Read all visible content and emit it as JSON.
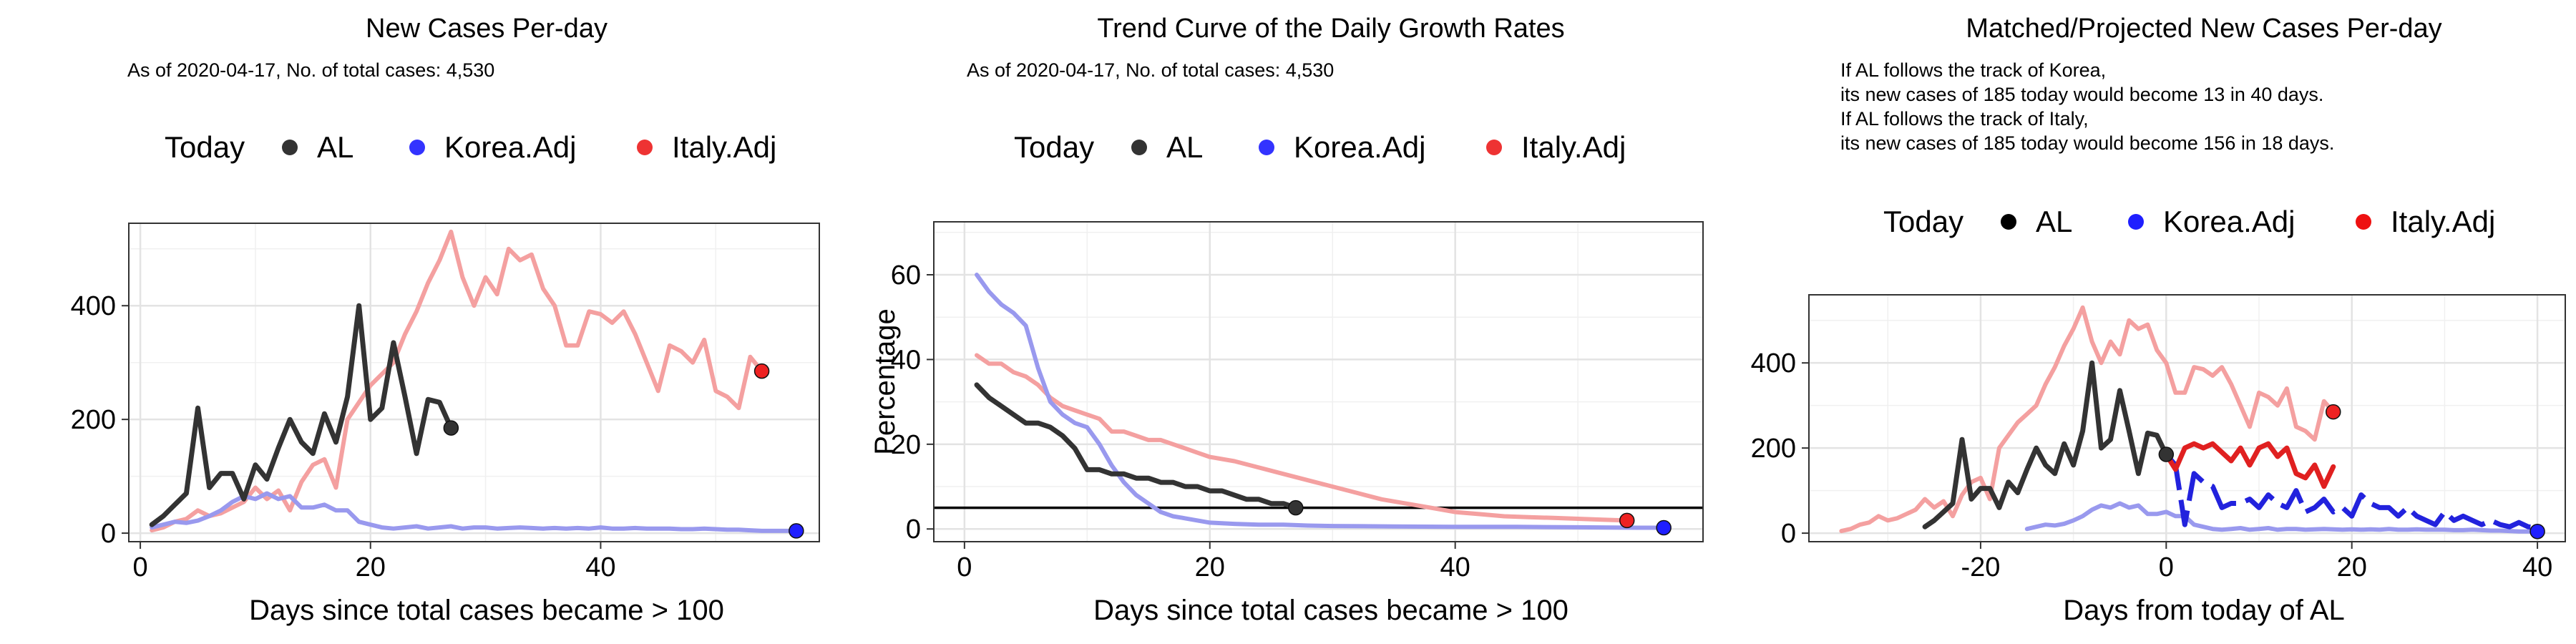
{
  "legend": {
    "title": "Today",
    "items": [
      "AL",
      "Korea.Adj",
      "Italy.Adj"
    ]
  },
  "colors": {
    "AL": "#333333",
    "Korea": "#9999ee",
    "Italy": "#f4a0a0",
    "KoreaProj": "#2222dd",
    "ItalyProj": "#e02020",
    "ALdot": "#333333",
    "KoreaDot": "#1f1fff",
    "ItalyDot": "#ee2222"
  },
  "panels": [
    {
      "title": "New Cases Per-day",
      "subtitle": "As of 2020-04-17, No. of total cases: 4,530"
    },
    {
      "title": "Trend Curve of the Daily Growth Rates",
      "subtitle": "As of 2020-04-17, No. of total cases: 4,530"
    },
    {
      "title": "Matched/Projected New Cases Per-day",
      "notes": [
        "If AL follows the track of Korea,",
        "its new cases of 185 today would become 13 in 40 days.",
        "If AL follows the track of Italy,",
        "its new cases of 185 today would become 156 in 18 days."
      ]
    }
  ],
  "chart_data": [
    {
      "type": "line",
      "title": "New Cases Per-day",
      "xlabel": "Days since total cases became > 100",
      "ylabel": "",
      "xlim": [
        -1,
        59
      ],
      "ylim": [
        -15,
        545
      ],
      "xticks": [
        0,
        20,
        40
      ],
      "yticks": [
        0,
        200,
        400
      ],
      "grid": true,
      "legend_position": "top",
      "series": [
        {
          "name": "AL",
          "x": [
            1,
            2,
            3,
            4,
            5,
            6,
            7,
            8,
            9,
            10,
            11,
            12,
            13,
            14,
            15,
            16,
            17,
            18,
            19,
            20,
            21,
            22,
            23,
            24,
            25,
            26,
            27
          ],
          "values": [
            15,
            30,
            50,
            70,
            220,
            80,
            105,
            105,
            60,
            120,
            95,
            150,
            200,
            160,
            140,
            210,
            160,
            240,
            400,
            200,
            220,
            335,
            240,
            140,
            235,
            230,
            185
          ]
        },
        {
          "name": "Korea.Adj",
          "x": [
            1,
            2,
            3,
            4,
            5,
            6,
            7,
            8,
            9,
            10,
            11,
            12,
            13,
            14,
            15,
            16,
            17,
            18,
            19,
            20,
            21,
            22,
            23,
            24,
            25,
            26,
            27,
            28,
            29,
            30,
            31,
            32,
            33,
            34,
            35,
            36,
            37,
            38,
            39,
            40,
            41,
            42,
            43,
            44,
            45,
            46,
            47,
            48,
            49,
            50,
            51,
            52,
            53,
            54,
            55,
            56,
            57
          ],
          "values": [
            10,
            15,
            20,
            18,
            22,
            30,
            40,
            55,
            65,
            60,
            70,
            60,
            65,
            45,
            45,
            50,
            40,
            40,
            20,
            15,
            10,
            8,
            10,
            12,
            8,
            10,
            12,
            8,
            10,
            10,
            8,
            9,
            10,
            9,
            8,
            9,
            8,
            9,
            8,
            10,
            8,
            8,
            9,
            8,
            8,
            8,
            7,
            7,
            8,
            7,
            6,
            6,
            5,
            4,
            4,
            4,
            4
          ]
        },
        {
          "name": "Italy.Adj",
          "x": [
            1,
            2,
            3,
            4,
            5,
            6,
            7,
            8,
            9,
            10,
            11,
            12,
            13,
            14,
            15,
            16,
            17,
            18,
            19,
            20,
            21,
            22,
            23,
            24,
            25,
            26,
            27,
            28,
            29,
            30,
            31,
            32,
            33,
            34,
            35,
            36,
            37,
            38,
            39,
            40,
            41,
            42,
            43,
            44,
            45,
            46,
            47,
            48,
            49,
            50,
            51,
            52,
            53,
            54
          ],
          "values": [
            5,
            10,
            20,
            25,
            40,
            30,
            35,
            45,
            55,
            80,
            60,
            75,
            40,
            90,
            120,
            130,
            80,
            200,
            230,
            260,
            280,
            300,
            350,
            390,
            440,
            480,
            530,
            450,
            400,
            450,
            420,
            500,
            480,
            490,
            430,
            400,
            330,
            330,
            390,
            385,
            370,
            390,
            350,
            300,
            250,
            330,
            320,
            300,
            340,
            250,
            240,
            220,
            310,
            285
          ]
        }
      ],
      "today_points": [
        {
          "series": "AL",
          "x": 27,
          "y": 185
        },
        {
          "series": "Korea.Adj",
          "x": 57,
          "y": 4
        },
        {
          "series": "Italy.Adj",
          "x": 54,
          "y": 285
        }
      ]
    },
    {
      "type": "line",
      "title": "Trend Curve of the Daily Growth Rates",
      "xlabel": "Days since total cases became > 100",
      "ylabel": "Percentage",
      "xlim": [
        -2.5,
        60.2
      ],
      "ylim": [
        -3,
        72.5
      ],
      "xticks": [
        0,
        20,
        40
      ],
      "yticks": [
        0,
        20,
        40,
        60
      ],
      "hline": 5,
      "grid": true,
      "legend_position": "top",
      "series": [
        {
          "name": "AL",
          "x": [
            1,
            2,
            3,
            4,
            5,
            6,
            7,
            8,
            9,
            10,
            11,
            12,
            13,
            14,
            15,
            16,
            17,
            18,
            19,
            20,
            21,
            22,
            23,
            24,
            25,
            26,
            27
          ],
          "values": [
            34,
            31,
            29,
            27,
            25,
            25,
            24,
            22,
            19,
            14,
            14,
            13,
            13,
            12,
            12,
            11,
            11,
            10,
            10,
            9,
            9,
            8,
            7,
            7,
            6,
            6,
            5
          ]
        },
        {
          "name": "Korea.Adj",
          "x": [
            1,
            2,
            3,
            4,
            5,
            6,
            7,
            8,
            9,
            10,
            11,
            12,
            13,
            14,
            15,
            16,
            17,
            18,
            19,
            20,
            22,
            24,
            26,
            28,
            30,
            35,
            40,
            45,
            50,
            55,
            57
          ],
          "values": [
            60,
            56,
            53,
            51,
            48,
            38,
            30,
            27,
            25,
            24,
            20,
            15,
            11,
            8,
            6,
            4,
            3,
            2.5,
            2,
            1.5,
            1.2,
            1,
            1,
            0.8,
            0.7,
            0.6,
            0.5,
            0.5,
            0.4,
            0.3,
            0.3
          ]
        },
        {
          "name": "Italy.Adj",
          "x": [
            1,
            2,
            3,
            4,
            5,
            6,
            7,
            8,
            9,
            10,
            11,
            12,
            13,
            14,
            15,
            16,
            17,
            18,
            19,
            20,
            22,
            24,
            26,
            28,
            30,
            32,
            34,
            36,
            38,
            40,
            42,
            44,
            46,
            48,
            50,
            52,
            54
          ],
          "values": [
            41,
            39,
            39,
            37,
            36,
            34,
            31,
            29,
            28,
            27,
            26,
            23,
            23,
            22,
            21,
            21,
            20,
            19,
            18,
            17,
            16,
            14.5,
            13,
            11.5,
            10,
            8.5,
            7,
            6,
            5,
            4,
            3.5,
            3,
            2.8,
            2.6,
            2.4,
            2.2,
            2
          ]
        }
      ],
      "today_points": [
        {
          "series": "AL",
          "x": 27,
          "y": 5
        },
        {
          "series": "Korea.Adj",
          "x": 57,
          "y": 0.3
        },
        {
          "series": "Italy.Adj",
          "x": 54,
          "y": 2
        }
      ]
    },
    {
      "type": "line",
      "title": "Matched/Projected New Cases Per-day",
      "xlabel": "Days from today of AL",
      "ylabel": "",
      "xlim": [
        -38.5,
        43
      ],
      "ylim": [
        -20,
        560
      ],
      "xticks": [
        -20,
        0,
        20,
        40
      ],
      "yticks": [
        0,
        200,
        400
      ],
      "grid": true,
      "legend_position": "top",
      "series": [
        {
          "name": "AL",
          "x": [
            -26,
            -25,
            -24,
            -23,
            -22,
            -21,
            -20,
            -19,
            -18,
            -17,
            -16,
            -15,
            -14,
            -13,
            -12,
            -11,
            -10,
            -9,
            -8,
            -7,
            -6,
            -5,
            -4,
            -3,
            -2,
            -1,
            0
          ],
          "values": [
            15,
            30,
            50,
            70,
            220,
            80,
            105,
            105,
            60,
            120,
            95,
            150,
            200,
            160,
            140,
            210,
            160,
            240,
            400,
            200,
            220,
            335,
            240,
            140,
            235,
            230,
            185
          ]
        },
        {
          "name": "Korea.Adj",
          "x": [
            -15,
            -14,
            -13,
            -12,
            -11,
            -10,
            -9,
            -8,
            -7,
            -6,
            -5,
            -4,
            -3,
            -2,
            -1,
            0,
            1,
            2,
            3,
            4,
            5,
            6,
            7,
            8,
            9,
            10,
            11,
            12,
            13,
            14,
            15,
            16,
            17,
            18,
            19,
            20,
            21,
            22,
            23,
            24,
            25,
            26,
            27,
            28,
            29,
            30,
            31,
            32,
            33,
            34,
            35,
            36,
            37,
            38,
            39,
            40
          ],
          "values": [
            10,
            15,
            20,
            18,
            22,
            30,
            40,
            55,
            65,
            60,
            70,
            60,
            65,
            45,
            45,
            50,
            40,
            40,
            20,
            15,
            10,
            8,
            10,
            12,
            8,
            10,
            12,
            8,
            10,
            10,
            8,
            9,
            10,
            9,
            8,
            9,
            8,
            9,
            8,
            10,
            8,
            8,
            9,
            8,
            8,
            8,
            7,
            7,
            8,
            7,
            6,
            6,
            5,
            4,
            4,
            4
          ]
        },
        {
          "name": "Italy.Adj",
          "x": [
            -35,
            -34,
            -33,
            -32,
            -31,
            -30,
            -29,
            -28,
            -27,
            -26,
            -25,
            -24,
            -23,
            -22,
            -21,
            -20,
            -19,
            -18,
            -17,
            -16,
            -15,
            -14,
            -13,
            -12,
            -11,
            -10,
            -9,
            -8,
            -7,
            -6,
            -5,
            -4,
            -3,
            -2,
            -1,
            0,
            1,
            2,
            3,
            4,
            5,
            6,
            7,
            8,
            9,
            10,
            11,
            12,
            13,
            14,
            15,
            16,
            17,
            18
          ],
          "values": [
            5,
            10,
            20,
            25,
            40,
            30,
            35,
            45,
            55,
            80,
            60,
            75,
            40,
            90,
            120,
            130,
            80,
            200,
            230,
            260,
            280,
            300,
            350,
            390,
            440,
            480,
            530,
            450,
            400,
            450,
            420,
            500,
            480,
            490,
            430,
            400,
            330,
            330,
            390,
            385,
            370,
            390,
            350,
            300,
            250,
            330,
            320,
            300,
            340,
            250,
            240,
            220,
            310,
            285
          ]
        },
        {
          "name": "Korea.Adj projection",
          "x": [
            0,
            1,
            2,
            3,
            4,
            5,
            6,
            7,
            8,
            9,
            10,
            11,
            12,
            13,
            14,
            15,
            16,
            17,
            18,
            19,
            20,
            21,
            22,
            23,
            24,
            25,
            26,
            27,
            28,
            29,
            30,
            31,
            32,
            33,
            34,
            35,
            36,
            37,
            38,
            39,
            40
          ],
          "values": [
            185,
            160,
            20,
            140,
            120,
            110,
            60,
            70,
            70,
            80,
            60,
            90,
            70,
            60,
            100,
            50,
            60,
            80,
            50,
            60,
            40,
            90,
            70,
            60,
            60,
            40,
            60,
            40,
            30,
            20,
            50,
            30,
            40,
            30,
            20,
            30,
            20,
            15,
            25,
            15,
            13
          ]
        },
        {
          "name": "Italy.Adj projection",
          "x": [
            0,
            1,
            2,
            3,
            4,
            5,
            6,
            7,
            8,
            9,
            10,
            11,
            12,
            13,
            14,
            15,
            16,
            17,
            18
          ],
          "values": [
            185,
            150,
            200,
            210,
            200,
            210,
            190,
            170,
            200,
            160,
            200,
            210,
            180,
            200,
            140,
            130,
            160,
            110,
            156
          ]
        }
      ],
      "today_points": [
        {
          "series": "AL",
          "x": 0,
          "y": 185
        },
        {
          "series": "Korea.Adj",
          "x": 40,
          "y": 4
        },
        {
          "series": "Italy.Adj",
          "x": 18,
          "y": 285
        }
      ]
    }
  ]
}
